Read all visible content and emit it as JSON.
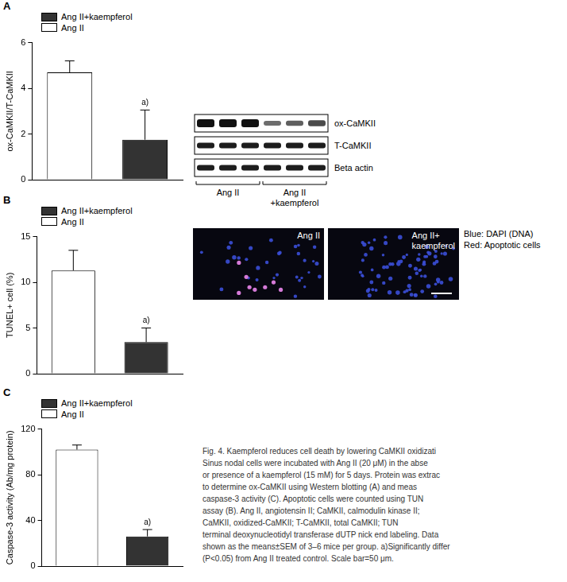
{
  "chart_data": [
    {
      "type": "bar",
      "panel": "A",
      "y_label": "ox-CaMKII/T-CaMKII",
      "categories": [
        null,
        null
      ],
      "series": [
        {
          "name": "Ang II",
          "color": "#ffffff",
          "values": [
            4.7,
            null
          ],
          "errors": [
            0.5,
            null
          ]
        },
        {
          "name": "Ang II+kaempferol",
          "color": "#333333",
          "values": [
            null,
            1.75
          ],
          "errors": [
            null,
            1.3
          ],
          "annotation": "a)"
        }
      ],
      "ylim": [
        0,
        6
      ],
      "yticks": [
        0,
        2,
        4,
        6
      ],
      "grid": false,
      "legend": "top-left",
      "tick_labels": "y"
    },
    {
      "type": "bar",
      "panel": "B",
      "y_label": "TUNEL+ cell (%)",
      "categories": [
        null,
        null
      ],
      "series": [
        {
          "name": "Ang II",
          "color": "#ffffff",
          "values": [
            11.3,
            null
          ],
          "errors": [
            2.2,
            null
          ]
        },
        {
          "name": "Ang II+kaempferol",
          "color": "#333333",
          "values": [
            null,
            3.45
          ],
          "errors": [
            null,
            1.55
          ],
          "annotation": "a)"
        }
      ],
      "ylim": [
        0,
        15
      ],
      "yticks": [
        0,
        5,
        10,
        15
      ],
      "grid": false,
      "legend": "top-left",
      "tick_labels": "y"
    },
    {
      "type": "bar",
      "panel": "C",
      "y_label": "Caspase-3 activity (Ab/mg protein)",
      "categories": [
        null,
        null
      ],
      "series": [
        {
          "name": "Ang II",
          "color": "#ffffff",
          "values": [
            102,
            null
          ],
          "errors": [
            4,
            null
          ]
        },
        {
          "name": "Ang II+kaempferol",
          "color": "#333333",
          "values": [
            null,
            26
          ],
          "errors": [
            null,
            6
          ],
          "annotation": "a)"
        }
      ],
      "ylim": [
        0,
        120
      ],
      "yticks": [
        0,
        40,
        80,
        120
      ],
      "grid": false,
      "legend": "top-left",
      "tick_labels": "y"
    }
  ],
  "blot": {
    "panel": "A",
    "bands": [
      "ox-CaMKII",
      "T-CaMKII",
      "Beta actin"
    ],
    "groups": [
      [
        "Ang II"
      ],
      [
        "Ang II",
        "+kaempferol"
      ]
    ]
  },
  "micrographs": {
    "panel": "B",
    "images": [
      [
        "Ang II"
      ],
      [
        "Ang II+",
        "kaempferol"
      ]
    ],
    "stain_key": [
      "Blue: DAPI (DNA)",
      "Red: Apoptotic cells"
    ]
  },
  "caption": [
    "Fig. 4. Kaempferol reduces cell death by lowering CaMKII oxidizati",
    "Sinus nodal cells were incubated with Ang II (20 μM) in the abse",
    "or presence of a kaempferol (15 mM) for 5 days. Protein was extrac",
    "to determine ox-CaMKII using Western blotting (A) and meas",
    "caspase-3 activity (C). Apoptotic cells were counted using TUN",
    "assay (B). Ang II, angiotensin II; CaMKII, calmodulin kinase II;",
    "CaMKII, oxidized-CaMKII; T-CaMKII, total CaMKII; TUN",
    "terminal deoxynucleotidyl transferase dUTP nick end labeling. Data",
    "shown as the means±SEM of 3–6 mice per group. a)Significantly differ",
    "(P<0.05) from Ang II treated control. Scale bar=50 μm."
  ]
}
